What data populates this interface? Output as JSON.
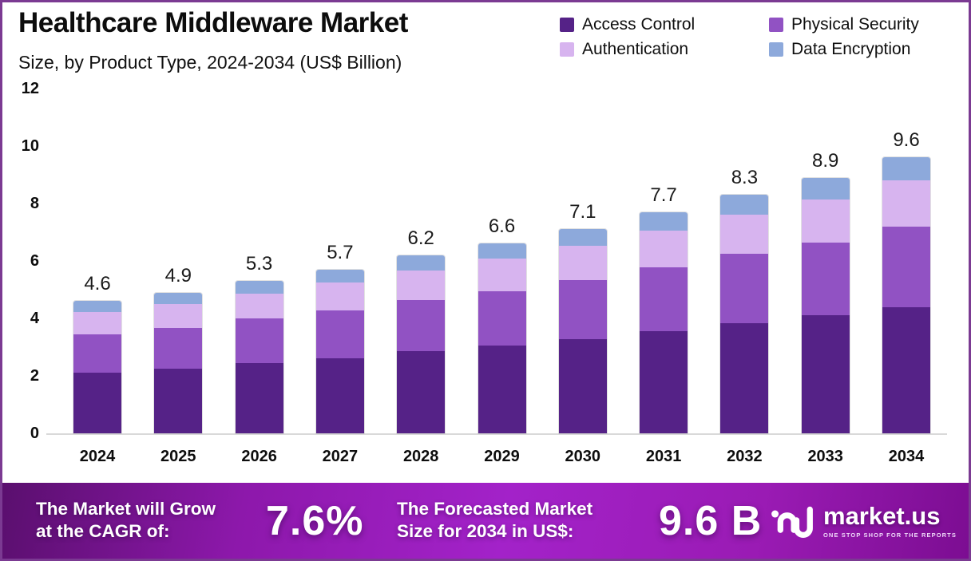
{
  "header": {
    "title": "Healthcare Middleware Market",
    "subtitle": "Size, by Product Type, 2024-2034 (US$ Billion)"
  },
  "legend": [
    {
      "label": "Access Control",
      "color": "#552287"
    },
    {
      "label": "Physical Security",
      "color": "#9152c3"
    },
    {
      "label": "Authentication",
      "color": "#d7b4ef"
    },
    {
      "label": "Data Encryption",
      "color": "#8da9db"
    }
  ],
  "chart_data": {
    "type": "bar",
    "stacked": true,
    "title": "Healthcare Middleware Market Size, by Product Type, 2024-2034 (US$ Billion)",
    "categories": [
      "2024",
      "2025",
      "2026",
      "2027",
      "2028",
      "2029",
      "2030",
      "2031",
      "2032",
      "2033",
      "2034"
    ],
    "series": [
      {
        "name": "Access Control",
        "color": "#552287",
        "values": [
          2.1,
          2.25,
          2.45,
          2.62,
          2.85,
          3.05,
          3.28,
          3.55,
          3.83,
          4.1,
          4.4
        ]
      },
      {
        "name": "Physical Security",
        "color": "#9152c3",
        "values": [
          1.35,
          1.43,
          1.54,
          1.65,
          1.78,
          1.9,
          2.05,
          2.22,
          2.42,
          2.55,
          2.8
        ]
      },
      {
        "name": "Authentication",
        "color": "#d7b4ef",
        "values": [
          0.78,
          0.82,
          0.88,
          0.97,
          1.05,
          1.12,
          1.2,
          1.28,
          1.35,
          1.5,
          1.6
        ]
      },
      {
        "name": "Data Encryption",
        "color": "#8da9db",
        "values": [
          0.37,
          0.4,
          0.43,
          0.46,
          0.52,
          0.53,
          0.57,
          0.65,
          0.7,
          0.75,
          0.8
        ]
      }
    ],
    "totals": [
      "4.6",
      "4.9",
      "5.3",
      "5.7",
      "6.2",
      "6.6",
      "7.1",
      "7.7",
      "8.3",
      "8.9",
      "9.6"
    ],
    "y_ticks": [
      0,
      2,
      4,
      6,
      8,
      10,
      12
    ],
    "ylim": [
      0,
      12
    ],
    "xlabel": "",
    "ylabel": "",
    "grid": false,
    "legend_position": "top-right"
  },
  "banner": {
    "cagr_line1": "The Market will Grow",
    "cagr_line2": "at the CAGR of:",
    "cagr_value": "7.6%",
    "forecast_line1": "The Forecasted Market",
    "forecast_line2": "Size for 2034 in US$:",
    "forecast_value": "9.6 B",
    "brand_name": "market.us",
    "brand_tagline": "ONE STOP SHOP FOR THE REPORTS"
  }
}
